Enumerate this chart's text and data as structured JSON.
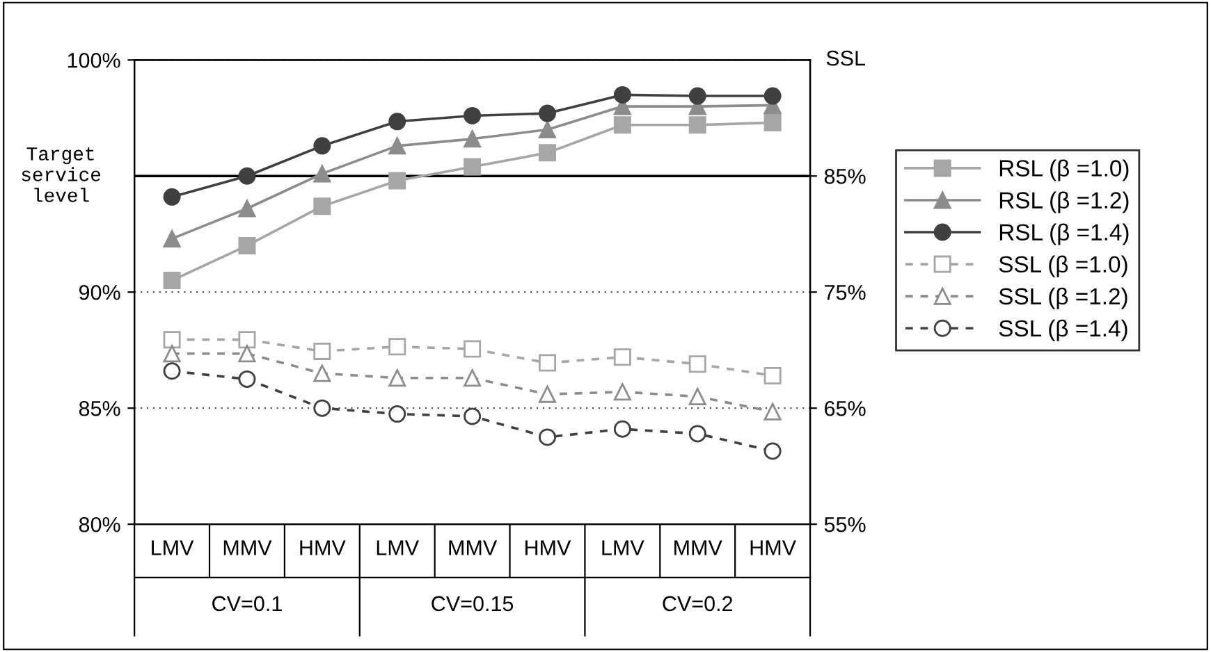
{
  "chart_data": {
    "type": "line",
    "categories": [
      "LMV",
      "MMV",
      "HMV",
      "LMV",
      "MMV",
      "HMV",
      "LMV",
      "MMV",
      "HMV"
    ],
    "y2label": "SSL",
    "ylim": [
      80,
      100
    ],
    "yticks": [
      {
        "value": 80,
        "label": "80%"
      },
      {
        "value": 85,
        "label": "85%"
      },
      {
        "value": 90,
        "label": "90%"
      },
      {
        "value": 100,
        "label": "100%"
      }
    ],
    "y2lim": [
      55,
      95
    ],
    "y2ticks": [
      {
        "value": 55,
        "label": "55%"
      },
      {
        "value": 65,
        "label": "65%"
      },
      {
        "value": 75,
        "label": "75%"
      },
      {
        "value": 85,
        "label": "85%"
      }
    ],
    "grid": "y",
    "legend": "right",
    "ref_lines": [
      {
        "axis": "y",
        "value": 95,
        "label": "Target service level",
        "color": "#000000",
        "line_style": "solid"
      }
    ],
    "annotations": [
      "CV=0.1",
      "CV=0.15",
      "CV=0.2"
    ],
    "series": [
      {
        "name": "RSL (β =1.0)",
        "color": "#a6a6a6",
        "marker": "square",
        "line_style": "solid",
        "values": [
          90.5,
          92.0,
          93.7,
          94.8,
          95.4,
          96.0,
          97.2,
          97.2,
          97.3
        ]
      },
      {
        "name": "RSL (β =1.2)",
        "color": "#8c8c8c",
        "marker": "triangle",
        "line_style": "solid",
        "values": [
          92.3,
          93.6,
          95.1,
          96.3,
          96.6,
          97.0,
          98.0,
          98.0,
          98.05
        ]
      },
      {
        "name": "RSL (β =1.4)",
        "color": "#404040",
        "marker": "circle",
        "line_style": "solid",
        "values": [
          94.1,
          95.0,
          96.3,
          97.35,
          97.6,
          97.7,
          98.5,
          98.45,
          98.45
        ]
      },
      {
        "name": "SSL (β =1.0)",
        "color": "#a6a6a6",
        "marker": "square",
        "line_style": "dashed",
        "axis": "y2",
        "values": [
          70.9,
          70.9,
          69.9,
          70.3,
          70.1,
          68.9,
          69.4,
          68.8,
          67.8
        ]
      },
      {
        "name": "SSL (β =1.2)",
        "color": "#8c8c8c",
        "marker": "triangle",
        "line_style": "dashed",
        "axis": "y2",
        "values": [
          69.7,
          69.7,
          68.0,
          67.6,
          67.6,
          66.2,
          66.4,
          66.0,
          64.7
        ]
      },
      {
        "name": "SSL (β =1.4)",
        "color": "#404040",
        "marker": "circle",
        "line_style": "dashed",
        "axis": "y2",
        "values": [
          68.2,
          67.5,
          65.0,
          64.5,
          64.3,
          62.5,
          63.2,
          62.8,
          61.3
        ]
      }
    ]
  }
}
